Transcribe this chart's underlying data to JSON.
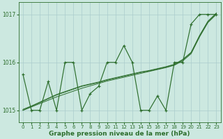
{
  "xlabel": "Graphe pression niveau de la mer (hPa)",
  "x": [
    0,
    1,
    2,
    3,
    4,
    5,
    6,
    7,
    8,
    9,
    10,
    11,
    12,
    13,
    14,
    15,
    16,
    17,
    18,
    19,
    20,
    21,
    22,
    23
  ],
  "y_main": [
    1015.75,
    1015.0,
    1015.0,
    1015.6,
    1015.0,
    1016.0,
    1016.0,
    1015.0,
    1015.35,
    1015.5,
    1016.0,
    1016.0,
    1016.35,
    1016.0,
    1015.0,
    1015.0,
    1015.3,
    1015.0,
    1016.0,
    1016.0,
    1016.8,
    1017.0,
    1017.0,
    1017.0
  ],
  "y_trend_a": [
    1015.0,
    1015.08,
    1015.16,
    1015.24,
    1015.32,
    1015.38,
    1015.44,
    1015.5,
    1015.54,
    1015.58,
    1015.63,
    1015.67,
    1015.71,
    1015.75,
    1015.79,
    1015.82,
    1015.86,
    1015.9,
    1015.95,
    1016.05,
    1016.2,
    1016.55,
    1016.85,
    1017.02
  ],
  "y_trend_b": [
    1015.0,
    1015.07,
    1015.14,
    1015.21,
    1015.28,
    1015.34,
    1015.4,
    1015.46,
    1015.51,
    1015.56,
    1015.61,
    1015.65,
    1015.69,
    1015.73,
    1015.77,
    1015.81,
    1015.85,
    1015.89,
    1015.94,
    1016.03,
    1016.18,
    1016.53,
    1016.83,
    1017.0
  ],
  "y_trend_c": [
    1015.02,
    1015.09,
    1015.17,
    1015.25,
    1015.33,
    1015.39,
    1015.45,
    1015.51,
    1015.55,
    1015.59,
    1015.64,
    1015.68,
    1015.72,
    1015.76,
    1015.8,
    1015.83,
    1015.87,
    1015.91,
    1015.96,
    1016.06,
    1016.21,
    1016.56,
    1016.86,
    1017.03
  ],
  "ylim": [
    1014.75,
    1017.25
  ],
  "yticks": [
    1015,
    1016,
    1017
  ],
  "xlim": [
    -0.5,
    23.5
  ],
  "line_color": "#2d6e2d",
  "bg_color": "#cce8e0",
  "grid_color": "#aacccc",
  "xlabel_fontsize": 6.5,
  "tick_fontsize": 5.5
}
